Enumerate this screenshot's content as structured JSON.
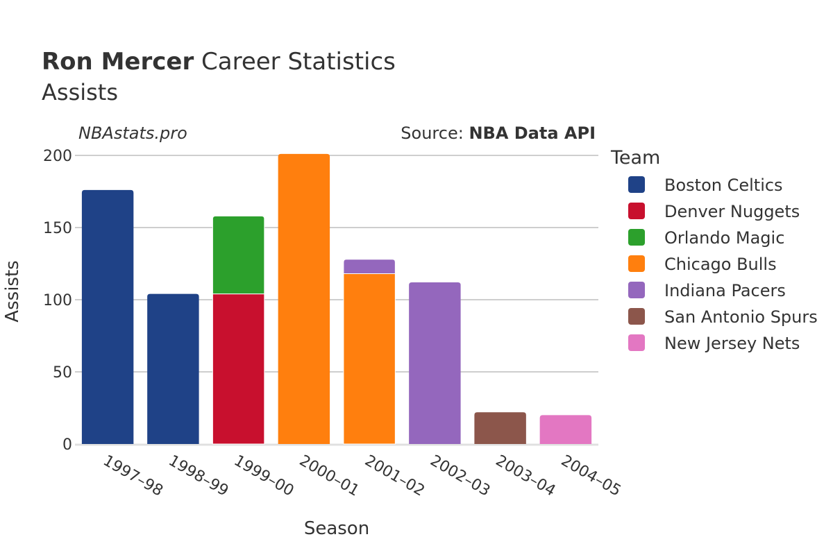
{
  "header": {
    "player": "Ron Mercer",
    "title_rest": " Career Statistics",
    "subtitle": "Assists",
    "watermark": "NBAstats.pro",
    "source_prefix": "Source: ",
    "source_name": "NBA Data API"
  },
  "legend": {
    "title": "Team",
    "placement": "right"
  },
  "chart_data": {
    "type": "bar",
    "stacked": true,
    "xlabel": "Season",
    "ylabel": "Assists",
    "ylim": [
      0,
      200
    ],
    "yticks": [
      0,
      50,
      100,
      150,
      200
    ],
    "grid": true,
    "categories": [
      "1997–98",
      "1998–99",
      "1999–00",
      "2000–01",
      "2001–02",
      "2002–03",
      "2003–04",
      "2004–05"
    ],
    "series": [
      {
        "name": "Boston Celtics",
        "color": "#1f4287",
        "values": [
          176,
          104,
          0,
          0,
          0,
          0,
          0,
          0
        ]
      },
      {
        "name": "Denver Nuggets",
        "color": "#c8102e",
        "values": [
          0,
          0,
          104,
          0,
          0,
          0,
          0,
          0
        ]
      },
      {
        "name": "Orlando Magic",
        "color": "#2ca02c",
        "values": [
          0,
          0,
          54,
          0,
          0,
          0,
          0,
          0
        ]
      },
      {
        "name": "Chicago Bulls",
        "color": "#ff7f0e",
        "values": [
          0,
          0,
          0,
          201,
          118,
          0,
          0,
          0
        ]
      },
      {
        "name": "Indiana Pacers",
        "color": "#9467bd",
        "values": [
          0,
          0,
          0,
          0,
          10,
          112,
          0,
          0
        ]
      },
      {
        "name": "San Antonio Spurs",
        "color": "#8c564b",
        "values": [
          0,
          0,
          0,
          0,
          0,
          0,
          22,
          0
        ]
      },
      {
        "name": "New Jersey Nets",
        "color": "#e377c2",
        "values": [
          0,
          0,
          0,
          0,
          0,
          0,
          0,
          20
        ]
      }
    ]
  }
}
